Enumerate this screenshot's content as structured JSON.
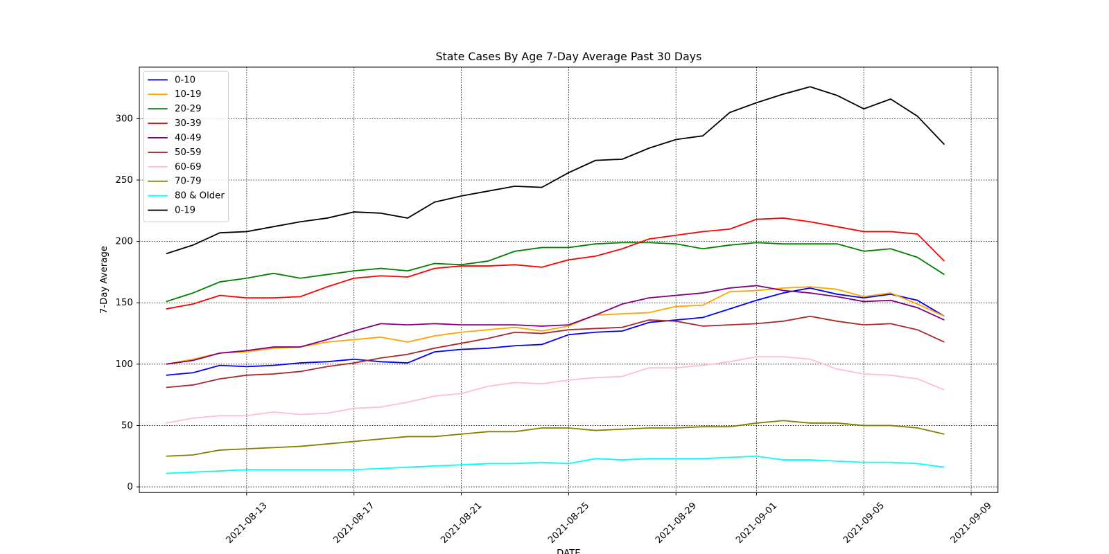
{
  "chart_data": {
    "type": "line",
    "title": "State Cases By Age 7-Day Average Past 30 Days",
    "x_label": "DATE",
    "y_label": "7-Day Average",
    "x": [
      "2021-08-10",
      "2021-08-11",
      "2021-08-12",
      "2021-08-13",
      "2021-08-14",
      "2021-08-15",
      "2021-08-16",
      "2021-08-17",
      "2021-08-18",
      "2021-08-19",
      "2021-08-20",
      "2021-08-21",
      "2021-08-22",
      "2021-08-23",
      "2021-08-24",
      "2021-08-25",
      "2021-08-26",
      "2021-08-27",
      "2021-08-28",
      "2021-08-29",
      "2021-08-30",
      "2021-08-31",
      "2021-09-01",
      "2021-09-02",
      "2021-09-03",
      "2021-09-04",
      "2021-09-05",
      "2021-09-06",
      "2021-09-07",
      "2021-09-08"
    ],
    "xlim": [
      "2021-08-09",
      "2021-09-10"
    ],
    "xticks": [
      "2021-08-13",
      "2021-08-17",
      "2021-08-21",
      "2021-08-25",
      "2021-08-29",
      "2021-09-01",
      "2021-09-05",
      "2021-09-09"
    ],
    "ylim": [
      -4.6,
      342
    ],
    "yticks": [
      0,
      50,
      100,
      150,
      200,
      250,
      300
    ],
    "grid": true,
    "legend": "upper left",
    "series": [
      {
        "name": "0-10",
        "color": "#0000ff",
        "values": [
          91,
          93,
          99,
          98,
          99,
          101,
          102,
          104,
          102,
          101,
          110,
          112,
          113,
          115,
          116,
          124,
          126,
          127,
          134,
          136,
          138,
          145,
          152,
          158,
          162,
          157,
          154,
          157,
          152,
          139
        ]
      },
      {
        "name": "10-19",
        "color": "#ffa500",
        "values": [
          100,
          104,
          109,
          110,
          113,
          114,
          118,
          120,
          122,
          118,
          123,
          126,
          128,
          130,
          127,
          131,
          140,
          141,
          142,
          147,
          148,
          159,
          160,
          162,
          163,
          161,
          155,
          158,
          149,
          139
        ]
      },
      {
        "name": "20-29",
        "color": "#008000",
        "values": [
          151,
          158,
          167,
          170,
          174,
          170,
          173,
          176,
          178,
          176,
          182,
          181,
          184,
          192,
          195,
          195,
          198,
          199,
          199,
          198,
          194,
          197,
          199,
          198,
          198,
          198,
          192,
          194,
          187,
          173
        ]
      },
      {
        "name": "30-39",
        "color": "#ff0000",
        "values": [
          145,
          149,
          156,
          154,
          154,
          155,
          163,
          170,
          172,
          171,
          178,
          180,
          180,
          181,
          179,
          185,
          188,
          194,
          202,
          205,
          208,
          210,
          218,
          219,
          216,
          212,
          208,
          208,
          206,
          184
        ]
      },
      {
        "name": "40-49",
        "color": "#800080",
        "values": [
          100,
          103,
          109,
          111,
          114,
          114,
          120,
          127,
          133,
          132,
          133,
          132,
          132,
          132,
          131,
          132,
          140,
          149,
          154,
          156,
          158,
          162,
          164,
          160,
          158,
          155,
          151,
          152,
          146,
          136
        ]
      },
      {
        "name": "50-59",
        "color": "#a52a2a",
        "values": [
          81,
          83,
          88,
          91,
          92,
          94,
          98,
          101,
          105,
          108,
          113,
          117,
          121,
          126,
          125,
          128,
          129,
          130,
          136,
          135,
          131,
          132,
          133,
          135,
          139,
          135,
          132,
          133,
          128,
          118
        ]
      },
      {
        "name": "60-69",
        "color": "#ffc0cb",
        "values": [
          52,
          56,
          58,
          58,
          61,
          59,
          60,
          64,
          65,
          69,
          74,
          76,
          82,
          85,
          84,
          87,
          89,
          90,
          97,
          97,
          99,
          102,
          106,
          106,
          104,
          96,
          92,
          91,
          88,
          79
        ]
      },
      {
        "name": "70-79",
        "color": "#808000",
        "values": [
          25,
          26,
          30,
          31,
          32,
          33,
          35,
          37,
          39,
          41,
          41,
          43,
          45,
          45,
          48,
          48,
          46,
          47,
          48,
          48,
          49,
          49,
          52,
          54,
          52,
          52,
          50,
          50,
          48,
          43
        ]
      },
      {
        "name": "80 & Older",
        "color": "#00ffff",
        "values": [
          11,
          12,
          13,
          14,
          14,
          14,
          14,
          14,
          15,
          16,
          17,
          18,
          19,
          19,
          20,
          19,
          23,
          22,
          23,
          23,
          23,
          24,
          25,
          22,
          22,
          21,
          20,
          20,
          19,
          16
        ]
      },
      {
        "name": "0-19",
        "color": "#000000",
        "values": [
          190,
          197,
          207,
          208,
          212,
          216,
          219,
          224,
          223,
          219,
          232,
          237,
          241,
          245,
          244,
          256,
          266,
          267,
          276,
          283,
          286,
          305,
          313,
          320,
          326,
          319,
          308,
          316,
          302,
          279
        ]
      }
    ]
  }
}
